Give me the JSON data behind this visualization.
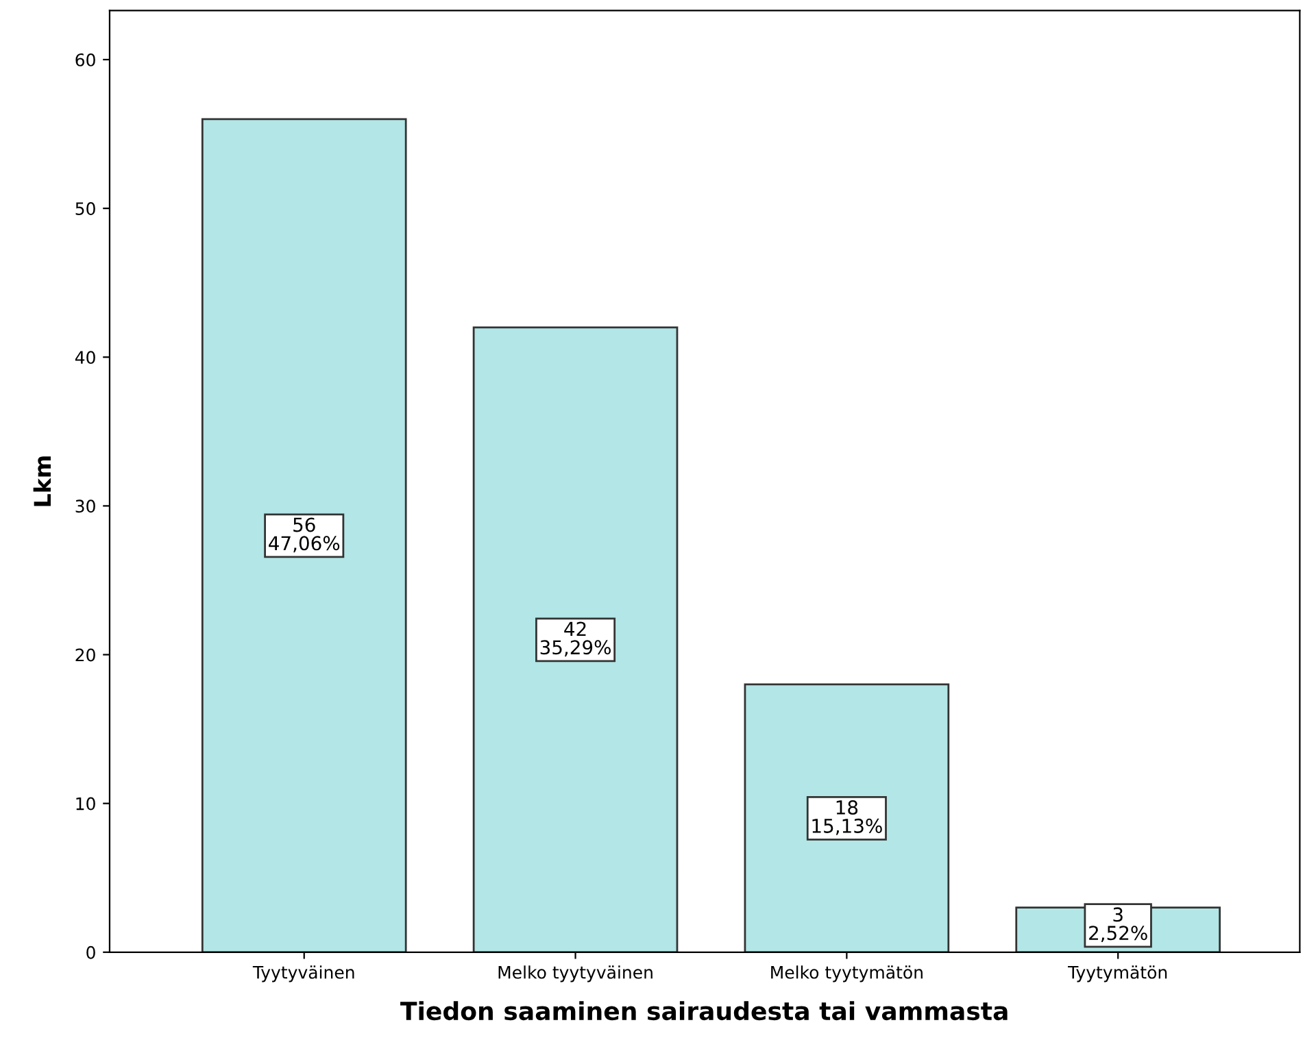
{
  "chart_data": {
    "type": "bar",
    "xlabel": "Tiedon saaminen sairaudesta tai vammasta",
    "ylabel": "Lkm",
    "categories": [
      "Tyytyväinen",
      "Melko tyytyväinen",
      "Melko tyytymätön",
      "Tyytymätön"
    ],
    "values": [
      56,
      42,
      18,
      3
    ],
    "value_labels": [
      "56\n47,06%",
      "42\n35,29%",
      "18\n15,13%",
      "3\n2,52%"
    ],
    "color": "#b3e6e6",
    "ylim": [
      0,
      63.3
    ],
    "yticks": [
      0,
      10,
      20,
      30,
      40,
      50,
      60
    ],
    "grid": false,
    "legend": false
  }
}
